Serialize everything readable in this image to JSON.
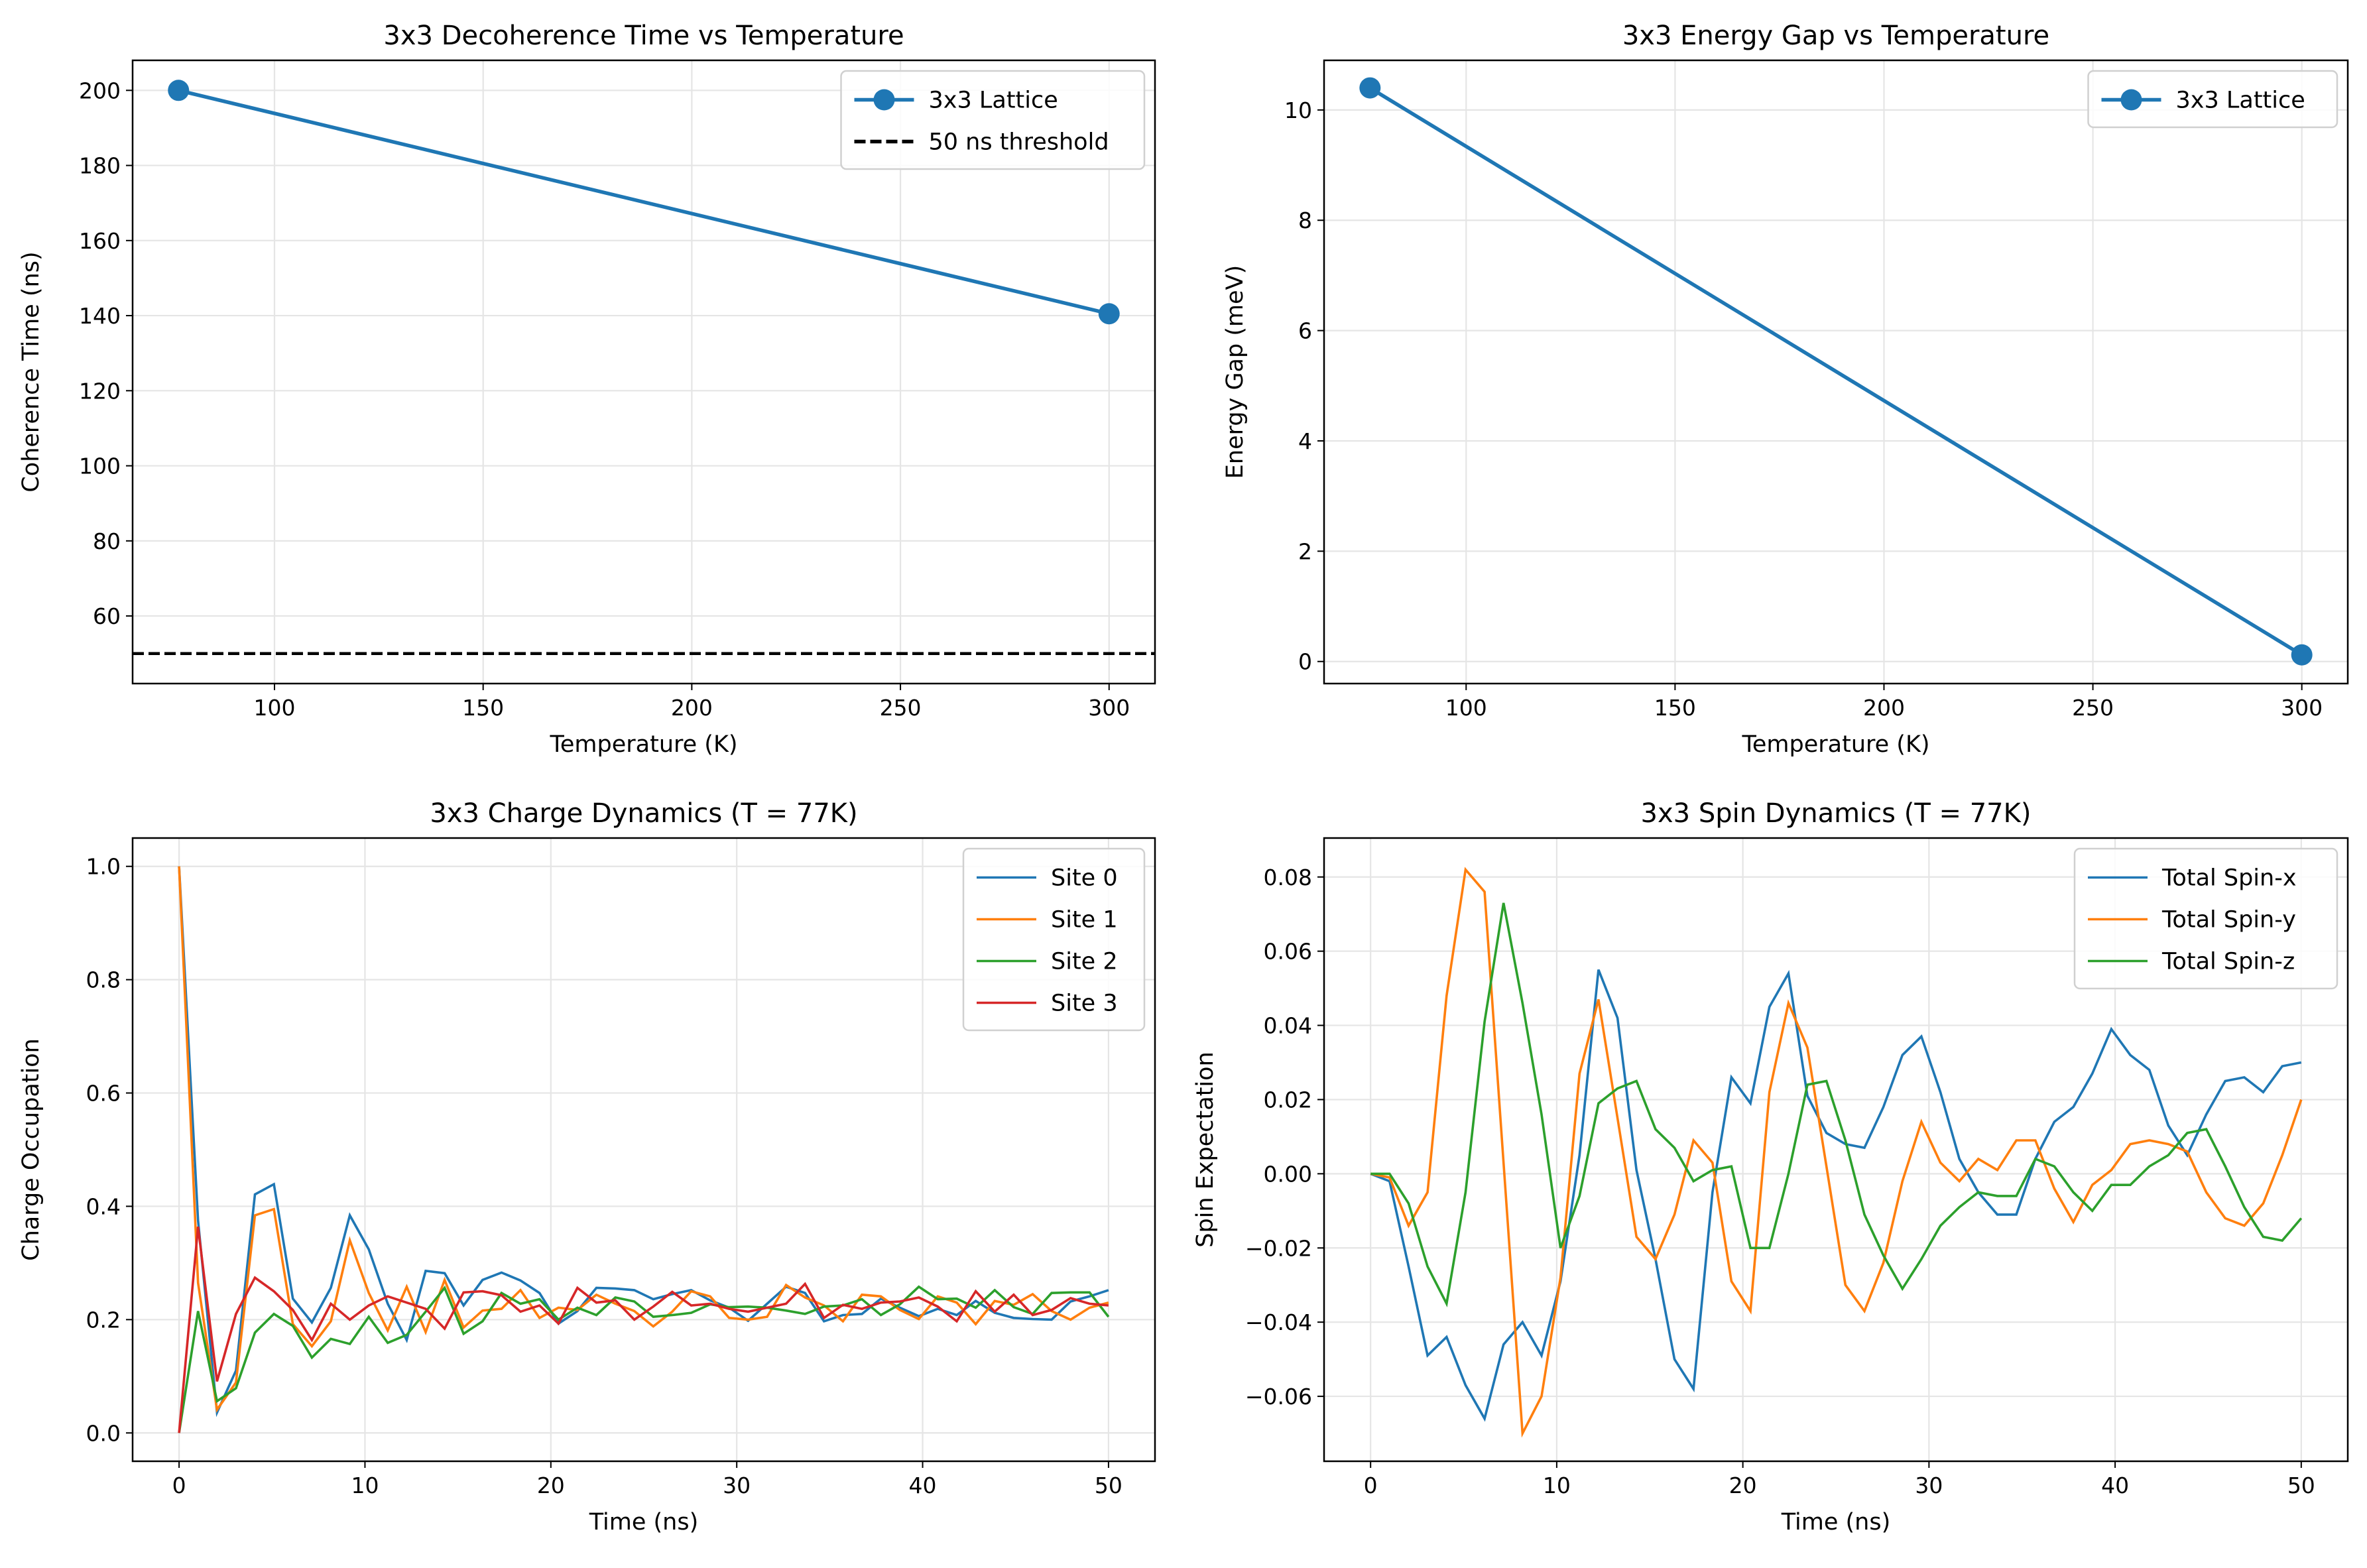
{
  "chart_data": [
    {
      "type": "line",
      "title": "3x3 Decoherence Time vs Temperature",
      "xlabel": "Temperature (K)",
      "ylabel": "Coherence Time (ns)",
      "xlim": [
        66,
        311
      ],
      "ylim": [
        42,
        208
      ],
      "xticks": [
        100,
        150,
        200,
        250,
        300
      ],
      "yticks": [
        60,
        80,
        100,
        120,
        140,
        160,
        180,
        200
      ],
      "ytick_labels": [
        "60",
        "80",
        "100",
        "120",
        "140",
        "160",
        "180",
        "200"
      ],
      "xtick_labels": [
        "100",
        "150",
        "200",
        "250",
        "300"
      ],
      "grid": true,
      "legend": "upper right",
      "series": [
        {
          "name": "3x3 Lattice",
          "color": "#1f77b4",
          "marker": "circle",
          "x": [
            77,
            300
          ],
          "y": [
            200,
            140.5
          ]
        }
      ],
      "hlines": [
        {
          "name": "50 ns threshold",
          "y": 50,
          "color": "#000000",
          "style": "dashed"
        }
      ]
    },
    {
      "type": "line",
      "title": "3x3 Energy Gap vs Temperature",
      "xlabel": "Temperature (K)",
      "ylabel": "Energy Gap (meV)",
      "xlim": [
        66,
        311
      ],
      "ylim": [
        -0.4,
        10.9
      ],
      "xticks": [
        100,
        150,
        200,
        250,
        300
      ],
      "xtick_labels": [
        "100",
        "150",
        "200",
        "250",
        "300"
      ],
      "yticks": [
        0,
        2,
        4,
        6,
        8,
        10
      ],
      "ytick_labels": [
        "0",
        "2",
        "4",
        "6",
        "8",
        "10"
      ],
      "grid": true,
      "legend": "upper right",
      "series": [
        {
          "name": "3x3 Lattice",
          "color": "#1f77b4",
          "marker": "circle",
          "x": [
            77,
            300
          ],
          "y": [
            10.4,
            0.12
          ]
        }
      ],
      "hlines": []
    },
    {
      "type": "line",
      "title": "3x3 Charge Dynamics (T = 77K)",
      "xlabel": "Time (ns)",
      "ylabel": "Charge Occupation",
      "xlim": [
        -2.5,
        52.5
      ],
      "ylim": [
        -0.05,
        1.05
      ],
      "xticks": [
        0,
        10,
        20,
        30,
        40,
        50
      ],
      "xtick_labels": [
        "0",
        "10",
        "20",
        "30",
        "40",
        "50"
      ],
      "yticks": [
        0,
        0.2,
        0.4,
        0.6,
        0.8,
        1.0
      ],
      "ytick_labels": [
        "0.0",
        "0.2",
        "0.4",
        "0.6",
        "0.8",
        "1.0"
      ],
      "grid": true,
      "legend": "upper right",
      "x_range": [
        0,
        50
      ],
      "n_points": 50,
      "series": [
        {
          "name": "Site 0",
          "color": "#1f77b4",
          "y": [
            1.0,
            0.375,
            0.036,
            0.11,
            0.421,
            0.439,
            0.237,
            0.195,
            0.256,
            0.384,
            0.324,
            0.228,
            0.164,
            0.286,
            0.282,
            0.225,
            0.27,
            0.283,
            0.269,
            0.247,
            0.193,
            0.215,
            0.256,
            0.255,
            0.252,
            0.236,
            0.245,
            0.252,
            0.234,
            0.221,
            0.198,
            0.228,
            0.258,
            0.247,
            0.197,
            0.208,
            0.21,
            0.237,
            0.221,
            0.206,
            0.219,
            0.208,
            0.233,
            0.212,
            0.203,
            0.201,
            0.2,
            0.232,
            0.241,
            0.252
          ]
        },
        {
          "name": "Site 1",
          "color": "#ff7f0e",
          "y": [
            1.0,
            0.265,
            0.041,
            0.089,
            0.384,
            0.395,
            0.192,
            0.153,
            0.197,
            0.34,
            0.247,
            0.181,
            0.258,
            0.178,
            0.27,
            0.186,
            0.216,
            0.219,
            0.252,
            0.203,
            0.221,
            0.217,
            0.244,
            0.228,
            0.215,
            0.188,
            0.214,
            0.25,
            0.241,
            0.203,
            0.2,
            0.205,
            0.261,
            0.239,
            0.225,
            0.197,
            0.244,
            0.241,
            0.217,
            0.201,
            0.241,
            0.23,
            0.192,
            0.233,
            0.226,
            0.245,
            0.215,
            0.2,
            0.221,
            0.23
          ]
        },
        {
          "name": "Site 2",
          "color": "#2ca02c",
          "y": [
            0.0,
            0.215,
            0.056,
            0.079,
            0.177,
            0.21,
            0.189,
            0.133,
            0.166,
            0.157,
            0.205,
            0.159,
            0.173,
            0.214,
            0.256,
            0.175,
            0.197,
            0.247,
            0.228,
            0.236,
            0.2,
            0.221,
            0.208,
            0.239,
            0.232,
            0.205,
            0.208,
            0.212,
            0.227,
            0.222,
            0.223,
            0.221,
            0.216,
            0.21,
            0.223,
            0.225,
            0.236,
            0.208,
            0.227,
            0.258,
            0.236,
            0.237,
            0.221,
            0.252,
            0.222,
            0.21,
            0.247,
            0.248,
            0.248,
            0.205
          ]
        },
        {
          "name": "Site 3",
          "color": "#d62728",
          "y": [
            0.0,
            0.364,
            0.091,
            0.21,
            0.274,
            0.25,
            0.217,
            0.164,
            0.228,
            0.2,
            0.225,
            0.241,
            0.23,
            0.219,
            0.184,
            0.248,
            0.25,
            0.243,
            0.214,
            0.225,
            0.193,
            0.256,
            0.23,
            0.234,
            0.2,
            0.223,
            0.249,
            0.225,
            0.228,
            0.219,
            0.214,
            0.221,
            0.228,
            0.263,
            0.203,
            0.226,
            0.219,
            0.23,
            0.232,
            0.239,
            0.223,
            0.197,
            0.25,
            0.214,
            0.244,
            0.208,
            0.217,
            0.238,
            0.228,
            0.225
          ]
        }
      ],
      "hlines": []
    },
    {
      "type": "line",
      "title": "3x3 Spin Dynamics (T = 77K)",
      "xlabel": "Time (ns)",
      "ylabel": "Spin Expectation",
      "xlim": [
        -2.5,
        52.5
      ],
      "ylim": [
        -0.0775,
        0.0905
      ],
      "xticks": [
        0,
        10,
        20,
        30,
        40,
        50
      ],
      "xtick_labels": [
        "0",
        "10",
        "20",
        "30",
        "40",
        "50"
      ],
      "yticks": [
        -0.06,
        -0.04,
        -0.02,
        0,
        0.02,
        0.04,
        0.06,
        0.08
      ],
      "ytick_labels": [
        "−0.06",
        "−0.04",
        "−0.02",
        "0.00",
        "0.02",
        "0.04",
        "0.06",
        "0.08"
      ],
      "grid": true,
      "legend": "upper right",
      "x_range": [
        0,
        50
      ],
      "n_points": 50,
      "series": [
        {
          "name": "Total Spin-x",
          "color": "#1f77b4",
          "y": [
            0.0,
            -0.002,
            -0.025,
            -0.049,
            -0.044,
            -0.057,
            -0.066,
            -0.046,
            -0.04,
            -0.049,
            -0.029,
            0.005,
            0.055,
            0.042,
            0.001,
            -0.023,
            -0.05,
            -0.058,
            -0.005,
            0.026,
            0.019,
            0.045,
            0.054,
            0.021,
            0.011,
            0.008,
            0.007,
            0.018,
            0.032,
            0.037,
            0.022,
            0.004,
            -0.005,
            -0.011,
            -0.011,
            0.004,
            0.014,
            0.018,
            0.027,
            0.039,
            0.032,
            0.028,
            0.013,
            0.005,
            0.016,
            0.025,
            0.026,
            0.022,
            0.029,
            0.03
          ]
        },
        {
          "name": "Total Spin-y",
          "color": "#ff7f0e",
          "y": [
            0.0,
            -0.001,
            -0.014,
            -0.005,
            0.048,
            0.082,
            0.076,
            0.003,
            -0.07,
            -0.06,
            -0.028,
            0.027,
            0.047,
            0.015,
            -0.017,
            -0.023,
            -0.011,
            0.009,
            0.003,
            -0.029,
            -0.037,
            0.022,
            0.046,
            0.034,
            0.002,
            -0.03,
            -0.037,
            -0.024,
            -0.002,
            0.014,
            0.003,
            -0.002,
            0.004,
            0.001,
            0.009,
            0.009,
            -0.004,
            -0.013,
            -0.003,
            0.001,
            0.008,
            0.009,
            0.008,
            0.006,
            -0.005,
            -0.012,
            -0.014,
            -0.008,
            0.005,
            0.02
          ]
        },
        {
          "name": "Total Spin-z",
          "color": "#2ca02c",
          "y": [
            0.0,
            0.0,
            -0.008,
            -0.025,
            -0.035,
            -0.005,
            0.041,
            0.073,
            0.046,
            0.016,
            -0.02,
            -0.006,
            0.019,
            0.023,
            0.025,
            0.012,
            0.007,
            -0.002,
            0.001,
            0.002,
            -0.02,
            -0.02,
            0.0,
            0.024,
            0.025,
            0.009,
            -0.011,
            -0.022,
            -0.031,
            -0.023,
            -0.014,
            -0.009,
            -0.005,
            -0.006,
            -0.006,
            0.004,
            0.002,
            -0.005,
            -0.01,
            -0.003,
            -0.003,
            0.002,
            0.005,
            0.011,
            0.012,
            0.002,
            -0.009,
            -0.017,
            -0.018,
            -0.012
          ]
        }
      ],
      "hlines": []
    }
  ]
}
